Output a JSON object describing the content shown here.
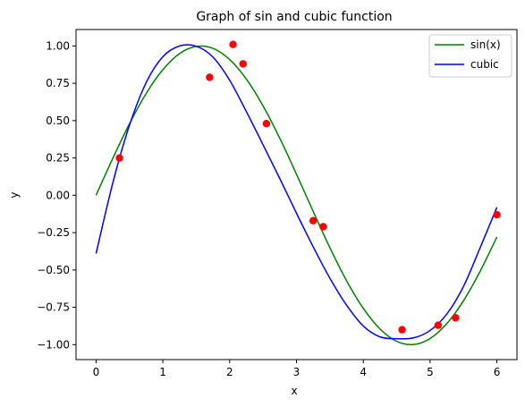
{
  "chart_data": {
    "type": "line",
    "title": "Graph of sin and cubic function",
    "xlabel": "x",
    "ylabel": "y",
    "xlim": [
      -0.3,
      6.3
    ],
    "ylim": [
      -1.1,
      1.11
    ],
    "xticks": [
      0,
      1,
      2,
      3,
      4,
      5,
      6
    ],
    "xtick_labels": [
      "0",
      "1",
      "2",
      "3",
      "4",
      "5",
      "6"
    ],
    "yticks": [
      -1.0,
      -0.75,
      -0.5,
      -0.25,
      0.0,
      0.25,
      0.5,
      0.75,
      1.0
    ],
    "ytick_labels": [
      "−1.00",
      "−0.75",
      "−0.50",
      "−0.25",
      "0.00",
      "0.25",
      "0.50",
      "0.75",
      "1.00"
    ],
    "grid": false,
    "legend_position": "top-right",
    "series": [
      {
        "name": "sin(x)",
        "kind": "line",
        "color": "#008000",
        "x": [
          0,
          0.25,
          0.5,
          0.75,
          1.0,
          1.25,
          1.5,
          1.75,
          2.0,
          2.25,
          2.5,
          2.75,
          3.0,
          3.25,
          3.5,
          3.75,
          4.0,
          4.25,
          4.5,
          4.75,
          5.0,
          5.25,
          5.5,
          5.75,
          6.0
        ],
        "y": [
          0.0,
          0.247,
          0.479,
          0.682,
          0.841,
          0.949,
          0.997,
          0.984,
          0.909,
          0.778,
          0.598,
          0.382,
          0.141,
          -0.108,
          -0.351,
          -0.572,
          -0.757,
          -0.895,
          -0.978,
          -0.999,
          -0.959,
          -0.859,
          -0.706,
          -0.508,
          -0.279
        ]
      },
      {
        "name": "cubic",
        "kind": "line",
        "color": "#0000ff",
        "x": [
          0,
          0.25,
          0.5,
          0.75,
          1.0,
          1.25,
          1.5,
          1.75,
          2.0,
          2.25,
          2.5,
          2.75,
          3.0,
          3.25,
          3.5,
          3.75,
          4.0,
          4.25,
          4.5,
          4.75,
          5.0,
          5.25,
          5.5,
          5.75,
          6.0
        ],
        "y": [
          -0.39,
          0.082,
          0.469,
          0.755,
          0.928,
          1.0,
          0.998,
          0.925,
          0.77,
          0.56,
          0.338,
          0.112,
          -0.12,
          -0.345,
          -0.555,
          -0.736,
          -0.875,
          -0.948,
          -0.96,
          -0.955,
          -0.905,
          -0.795,
          -0.61,
          -0.35,
          -0.08
        ]
      }
    ],
    "scatter": {
      "color": "#ff0000",
      "x": [
        0.35,
        1.7,
        2.05,
        2.2,
        2.55,
        3.25,
        3.4,
        4.58,
        5.12,
        5.38,
        6.0
      ],
      "y": [
        0.25,
        0.79,
        1.01,
        0.88,
        0.48,
        -0.17,
        -0.21,
        -0.9,
        -0.87,
        -0.82,
        -0.13
      ]
    }
  }
}
